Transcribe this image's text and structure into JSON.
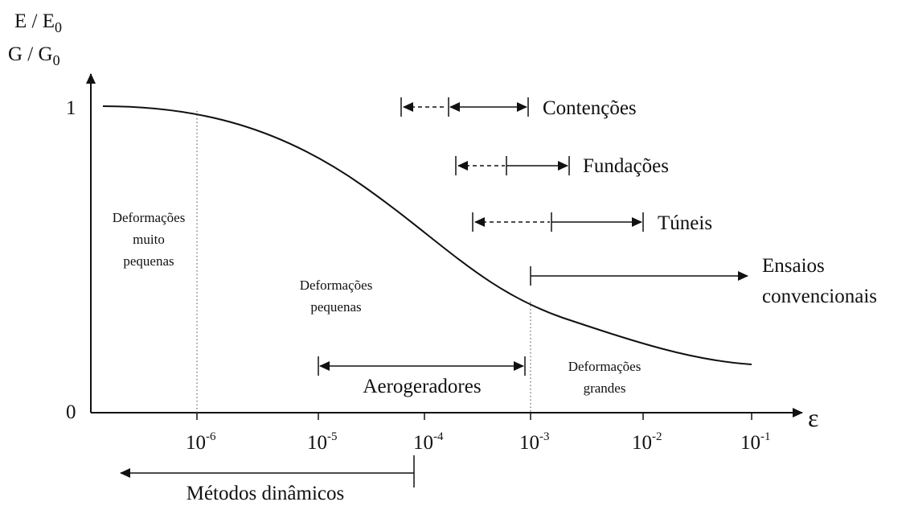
{
  "y_axis_label": {
    "line1": {
      "base": "E / E",
      "sub": "0"
    },
    "line2": {
      "base": "G / G",
      "sub": "0"
    }
  },
  "x_axis_label": "ε",
  "y_ticks": [
    "1",
    "0"
  ],
  "x_ticks": [
    {
      "base": "10",
      "exp": "-6"
    },
    {
      "base": "10",
      "exp": "-5"
    },
    {
      "base": "10",
      "exp": "-4"
    },
    {
      "base": "10",
      "exp": "-3"
    },
    {
      "base": "10",
      "exp": "-2"
    },
    {
      "base": "10",
      "exp": "-1"
    }
  ],
  "ranges": [
    "Contenções",
    "Fundações",
    "Túneis",
    [
      "Ensaios",
      "convencionais"
    ],
    "Aerogeradores",
    "Métodos dinâmicos"
  ],
  "zones": [
    [
      "Deformações",
      "muito",
      "pequenas"
    ],
    [
      "Deformações",
      "pequenas"
    ],
    [
      "Deformações",
      "grandes"
    ]
  ]
}
